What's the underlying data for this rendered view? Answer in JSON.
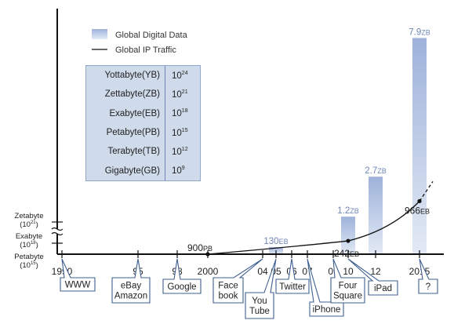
{
  "legend": {
    "bar_label": "Global Digital Data",
    "line_label": "Global IP Traffic"
  },
  "unit_table": [
    {
      "name": "Yottabyte(YB)",
      "base": "10",
      "exp": "24"
    },
    {
      "name": "Zettabyte(ZB)",
      "base": "10",
      "exp": "21"
    },
    {
      "name": "Exabyte(EB)",
      "base": "10",
      "exp": "18"
    },
    {
      "name": "Petabyte(PB)",
      "base": "10",
      "exp": "15"
    },
    {
      "name": "Terabyte(TB)",
      "base": "10",
      "exp": "12"
    },
    {
      "name": "Gigabyte(GB)",
      "base": "10",
      "exp": "9"
    }
  ],
  "y_units": [
    {
      "name": "Zetabyte",
      "base": "(10",
      "exp": "21",
      "close": ")"
    },
    {
      "name": "Exabyte",
      "base": "(10",
      "exp": "18",
      "close": ")"
    },
    {
      "name": "Petabyte",
      "base": "(10",
      "exp": "15",
      "close": ")"
    }
  ],
  "chart_data": {
    "type": "bar",
    "x_ticks": [
      "1990",
      "95",
      "98",
      "2000",
      "04",
      "05",
      "06",
      "07",
      "09",
      "10",
      "12",
      "2015"
    ],
    "bars": [
      {
        "x": "05",
        "value": 130,
        "unit": "EB",
        "label_num": "130",
        "label_unit": "EB"
      },
      {
        "x": "10",
        "value": 1.2,
        "unit": "ZB",
        "label_num": "1.2",
        "label_unit": "ZB"
      },
      {
        "x": "12",
        "value": 2.7,
        "unit": "ZB",
        "label_num": "2.7",
        "label_unit": "ZB"
      },
      {
        "x": "2015",
        "value": 7.9,
        "unit": "ZB",
        "label_num": "7.9",
        "label_unit": "ZB"
      }
    ],
    "line_points": [
      {
        "x": "2000",
        "value": 900,
        "unit": "PB",
        "label_num": "900",
        "label_unit": "PB"
      },
      {
        "x": "10",
        "value": 242,
        "unit": "EB",
        "label_num": "242",
        "label_unit": "EB"
      },
      {
        "x": "2015",
        "value": 966,
        "unit": "EB",
        "label_num": "966",
        "label_unit": "EB"
      }
    ],
    "events": [
      {
        "x": "1990",
        "lines": [
          "WWW"
        ]
      },
      {
        "x": "95",
        "lines": [
          "eBay",
          "Amazon"
        ]
      },
      {
        "x": "98",
        "lines": [
          "Google"
        ]
      },
      {
        "x": "04",
        "lines": [
          "Face",
          "book"
        ]
      },
      {
        "x": "05",
        "lines": [
          "You",
          "Tube"
        ]
      },
      {
        "x": "06",
        "lines": [
          "Twitter"
        ]
      },
      {
        "x": "07",
        "lines": [
          "iPhone"
        ]
      },
      {
        "x": "09",
        "lines": [
          "Four",
          "Square"
        ]
      },
      {
        "x": "10",
        "lines": [
          "iPad"
        ]
      },
      {
        "x": "2015",
        "lines": [
          "?"
        ]
      }
    ],
    "colors": {
      "bar_top": "#9eb2da",
      "bar_bottom": "#dfe7f4",
      "line": "#111111",
      "callout_border": "#3f5f8f"
    }
  }
}
